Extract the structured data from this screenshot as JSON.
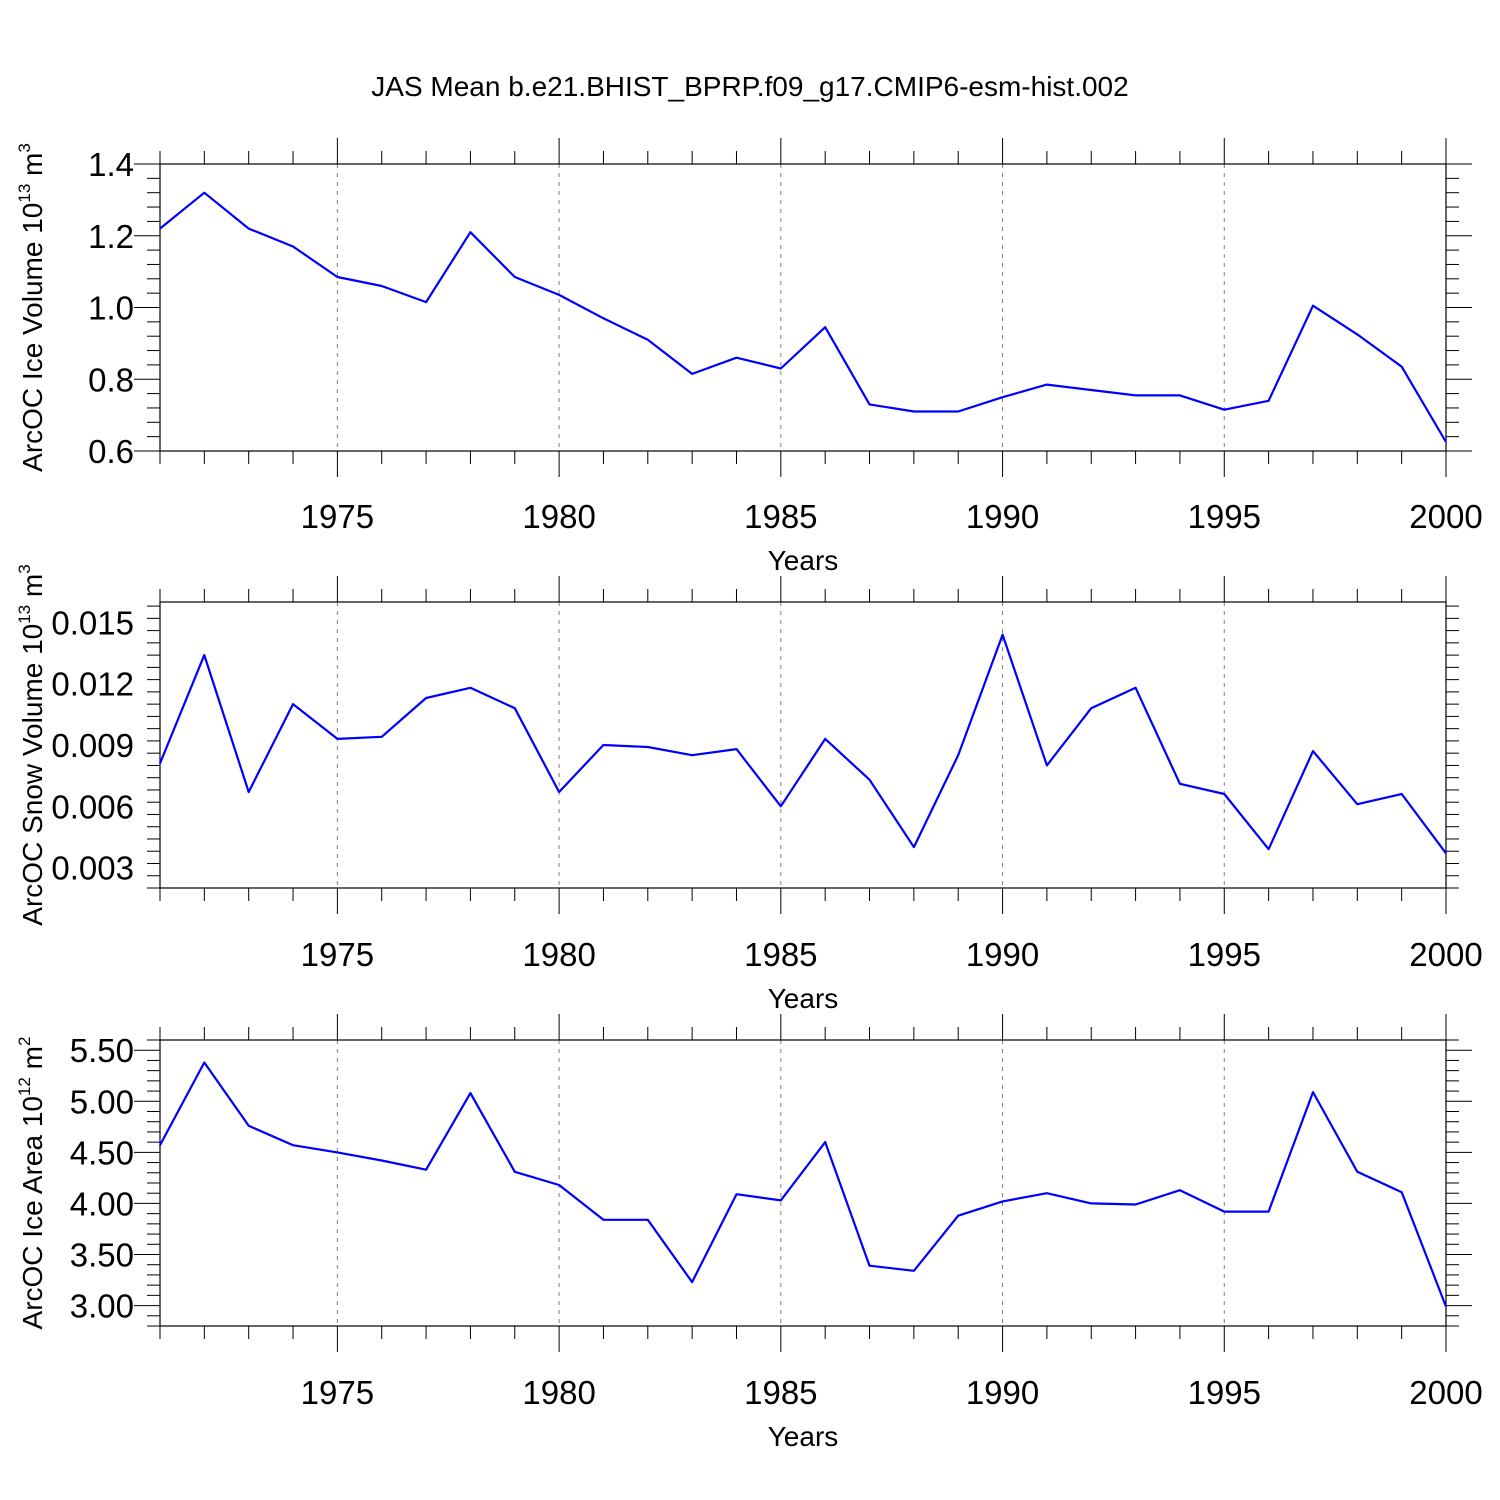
{
  "title": "JAS Mean b.e21.BHIST_BPRP.f09_g17.CMIP6-esm-hist.002",
  "colors": {
    "line": "#0000ff",
    "axis": "#000000",
    "grid": "#808080"
  },
  "chart_data": [
    {
      "type": "line",
      "xlabel": "Years",
      "ylabel": {
        "text": "ArcOC Ice Volume 10",
        "exp": "13",
        "unit": " m",
        "unit_exp": "3"
      },
      "xlim": [
        1971,
        2000
      ],
      "ylim": [
        0.6,
        1.4
      ],
      "xticks": [
        1975,
        1980,
        1985,
        1990,
        1995,
        2000
      ],
      "yticks": [
        0.6,
        0.8,
        1.0,
        1.2,
        1.4
      ],
      "ytick_labels": [
        "0.6",
        "0.8",
        "1.0",
        "1.2",
        "1.4"
      ],
      "x": [
        1971,
        1972,
        1973,
        1974,
        1975,
        1976,
        1977,
        1978,
        1979,
        1980,
        1981,
        1982,
        1983,
        1984,
        1985,
        1986,
        1987,
        1988,
        1989,
        1990,
        1991,
        1992,
        1993,
        1994,
        1995,
        1996,
        1997,
        1998,
        1999,
        2000
      ],
      "values": [
        1.22,
        1.32,
        1.22,
        1.17,
        1.085,
        1.06,
        1.015,
        1.21,
        1.085,
        1.035,
        0.97,
        0.91,
        0.815,
        0.86,
        0.83,
        0.945,
        0.73,
        0.71,
        0.71,
        0.75,
        0.785,
        0.77,
        0.755,
        0.755,
        0.715,
        0.74,
        1.005,
        0.925,
        0.835,
        0.625
      ],
      "grid": "dashed vertical lines at x ticks"
    },
    {
      "type": "line",
      "xlabel": "Years",
      "ylabel": {
        "text": "ArcOC Snow Volume 10",
        "exp": "13",
        "unit": " m",
        "unit_exp": "3"
      },
      "xlim": [
        1971,
        2000
      ],
      "ylim": [
        0.002,
        0.016
      ],
      "xticks": [
        1975,
        1980,
        1985,
        1990,
        1995,
        2000
      ],
      "yticks": [
        0.003,
        0.006,
        0.009,
        0.012,
        0.015
      ],
      "ytick_labels": [
        "0.003",
        "0.006",
        "0.009",
        "0.012",
        "0.015"
      ],
      "x": [
        1971,
        1972,
        1973,
        1974,
        1975,
        1976,
        1977,
        1978,
        1979,
        1980,
        1981,
        1982,
        1983,
        1984,
        1985,
        1986,
        1987,
        1988,
        1989,
        1990,
        1991,
        1992,
        1993,
        1994,
        1995,
        1996,
        1997,
        1998,
        1999,
        2000
      ],
      "values": [
        0.0081,
        0.0134,
        0.0067,
        0.011,
        0.0093,
        0.0094,
        0.0113,
        0.0118,
        0.0108,
        0.0067,
        0.009,
        0.0089,
        0.0085,
        0.0088,
        0.006,
        0.0093,
        0.0073,
        0.004,
        0.0085,
        0.0144,
        0.008,
        0.0108,
        0.0118,
        0.0071,
        0.0066,
        0.0039,
        0.0087,
        0.0061,
        0.0066,
        0.0037
      ],
      "grid": "dashed vertical lines at x ticks"
    },
    {
      "type": "line",
      "xlabel": "Years",
      "ylabel": {
        "text": "ArcOC Ice Area 10",
        "exp": "12",
        "unit": " m",
        "unit_exp": "2"
      },
      "xlim": [
        1971,
        2000
      ],
      "ylim": [
        2.8,
        5.6
      ],
      "xticks": [
        1975,
        1980,
        1985,
        1990,
        1995,
        2000
      ],
      "yticks": [
        3.0,
        3.5,
        4.0,
        4.5,
        5.0,
        5.5
      ],
      "ytick_labels": [
        "3.00",
        "3.50",
        "4.00",
        "4.50",
        "5.00",
        "5.50"
      ],
      "x": [
        1971,
        1972,
        1973,
        1974,
        1975,
        1976,
        1977,
        1978,
        1979,
        1980,
        1981,
        1982,
        1983,
        1984,
        1985,
        1986,
        1987,
        1988,
        1989,
        1990,
        1991,
        1992,
        1993,
        1994,
        1995,
        1996,
        1997,
        1998,
        1999,
        2000
      ],
      "values": [
        4.57,
        5.38,
        4.76,
        4.57,
        4.5,
        4.42,
        4.33,
        5.08,
        4.31,
        4.18,
        3.84,
        3.84,
        3.23,
        4.09,
        4.03,
        4.6,
        3.39,
        3.34,
        3.88,
        4.02,
        4.1,
        4.0,
        3.99,
        4.13,
        3.92,
        3.92,
        5.09,
        4.31,
        4.11,
        2.99
      ],
      "grid": "dashed vertical lines at x ticks"
    }
  ]
}
